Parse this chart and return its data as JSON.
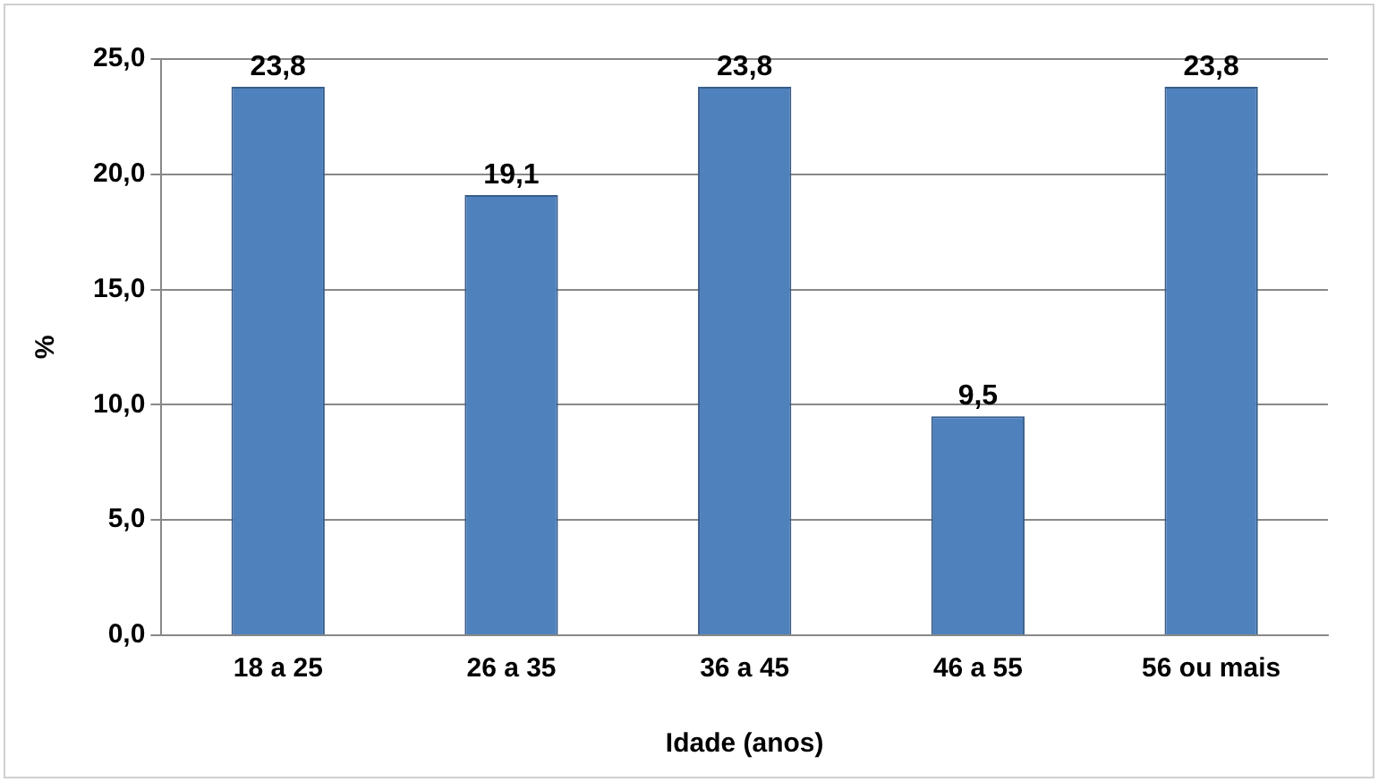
{
  "chart_data": {
    "type": "bar",
    "xlabel": "Idade (anos)",
    "ylabel": "%",
    "categories": [
      "18 a 25",
      "26 a 35",
      "36 a 45",
      "46 a 55",
      "56 ou mais"
    ],
    "values": [
      23.8,
      19.1,
      23.8,
      9.5,
      23.8
    ],
    "color": "#4f81bd",
    "value_labels": [
      "23,8",
      "19,1",
      "23,8",
      "9,5",
      "23,8"
    ],
    "ylim": [
      0,
      25
    ],
    "yticks": [
      {
        "value": 0,
        "label": "0,0"
      },
      {
        "value": 5,
        "label": "5,0"
      },
      {
        "value": 10,
        "label": "10,0"
      },
      {
        "value": 15,
        "label": "15,0"
      },
      {
        "value": 20,
        "label": "20,0"
      },
      {
        "value": 25,
        "label": "25,0"
      }
    ],
    "grid": "y",
    "legend": false
  }
}
